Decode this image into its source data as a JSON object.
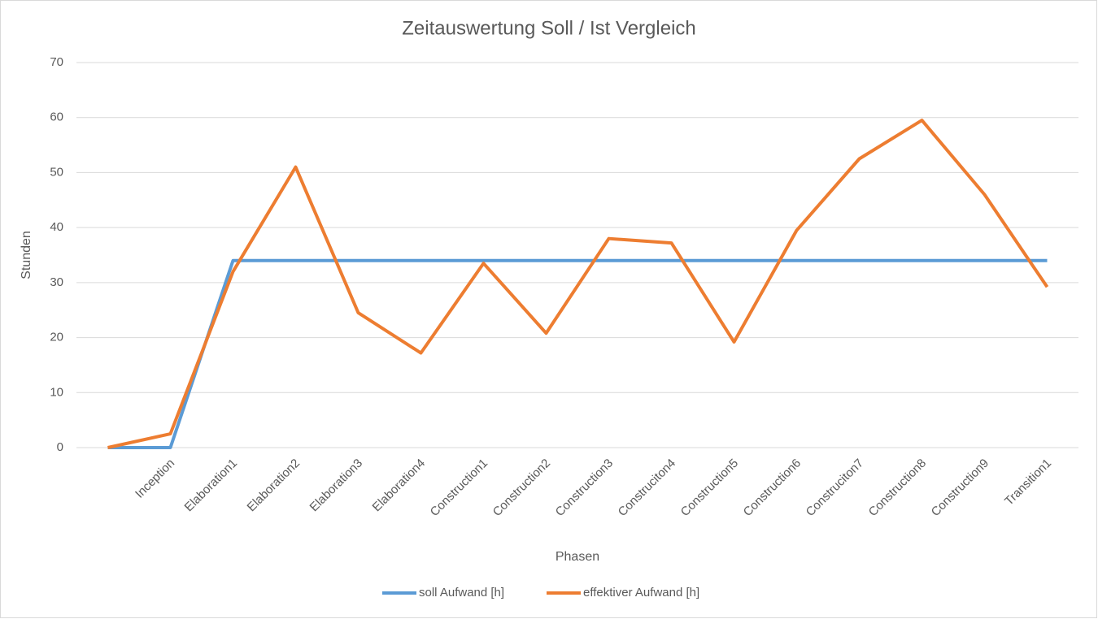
{
  "chart_data": {
    "type": "line",
    "title": "Zeitauswertung Soll / Ist Vergleich",
    "x_label": "Phasen",
    "y_label": "Stunden",
    "categories": [
      null,
      "Inception",
      "Elaboration1",
      "Elaboration2",
      "Elaboration3",
      "Elaboration4",
      "Construction1",
      "Construction2",
      "Construction3",
      "Construciton4",
      "Construction5",
      "Construction6",
      "Construciton7",
      "Construction8",
      "Construction9",
      "Transition1"
    ],
    "series": [
      {
        "name": "soll Aufwand [h]",
        "color": "#5b9bd5",
        "values": [
          0,
          0,
          34,
          34,
          34,
          34,
          34,
          34,
          34,
          34,
          34,
          34,
          34,
          34,
          34,
          34
        ]
      },
      {
        "name": "effektiver Aufwand [h]",
        "color": "#ed7d31",
        "values": [
          0,
          2.5,
          32,
          51,
          24.5,
          17.2,
          33.5,
          20.8,
          38,
          37.2,
          19.2,
          39.5,
          52.5,
          59.5,
          46,
          29.2
        ]
      }
    ],
    "ylim": [
      0,
      70
    ],
    "yticks": [
      0,
      10,
      20,
      30,
      40,
      50,
      60,
      70
    ],
    "grid": true,
    "legend": "bottom"
  }
}
